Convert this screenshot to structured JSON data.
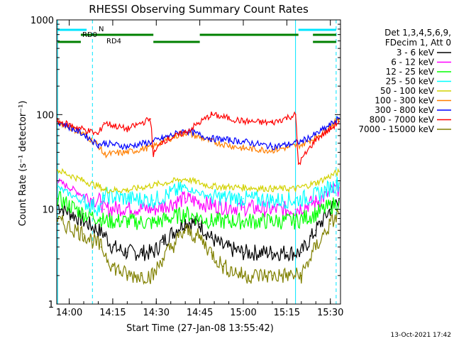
{
  "chart_data": {
    "type": "line",
    "title": "RHESSI Observing Summary Count Rates",
    "xlabel": "Start Time (27-Jan-08 13:55:42)",
    "ylabel": "Count Rate (s⁻¹ detector⁻¹)",
    "xlim": [
      "13:55:42",
      "15:33:30"
    ],
    "ylim": [
      1,
      1000
    ],
    "yscale": "log",
    "x_ticks": [
      "14:00",
      "14:15",
      "14:30",
      "14:45",
      "15:00",
      "15:15",
      "15:30"
    ],
    "y_ticks": [
      "1",
      "10",
      "100",
      "1000"
    ],
    "legend_header": [
      "Det 1,3,4,5,6,9,",
      "FDecim 1, Att 0"
    ],
    "legend_position": "right",
    "footer_date": "13-Oct-2021 17:42",
    "flags": [
      {
        "label": "N",
        "color": "#00e5ff",
        "segments": [
          [
            "13:56",
            "14:06"
          ],
          [
            "15:19",
            "15:32"
          ]
        ]
      },
      {
        "label": "RD0",
        "color": "#008000",
        "segments": [
          [
            "14:04",
            "14:29"
          ],
          [
            "14:45",
            "15:19"
          ],
          [
            "15:24",
            "15:32"
          ]
        ]
      },
      {
        "label": "RD4",
        "color": "#008000",
        "segments": [
          [
            "13:56",
            "14:04"
          ],
          [
            "14:29",
            "14:45"
          ],
          [
            "15:24",
            "15:32"
          ]
        ]
      }
    ],
    "vlines": [
      {
        "time": "13:56",
        "style": "solid"
      },
      {
        "time": "14:08",
        "style": "dashed"
      },
      {
        "time": "15:18",
        "style": "solid"
      },
      {
        "time": "15:32",
        "style": "dashed"
      }
    ],
    "series": [
      {
        "name": "3 - 6 keV",
        "color": "#000000",
        "x": [
          "13:56",
          "14:05",
          "14:12",
          "14:15",
          "14:20",
          "14:25",
          "14:29",
          "14:32",
          "14:40",
          "14:45",
          "14:49",
          "14:53",
          "15:00",
          "15:10",
          "15:15",
          "15:20",
          "15:25",
          "15:30",
          "15:33"
        ],
        "values": [
          11,
          7.5,
          5.5,
          4,
          3.5,
          3.5,
          3.5,
          4.5,
          7.5,
          7,
          5,
          4,
          3.5,
          3.5,
          3.5,
          3.5,
          6,
          10,
          13
        ]
      },
      {
        "name": "6 - 12 keV",
        "color": "#ff00ff",
        "x": [
          "13:56",
          "14:05",
          "14:11",
          "14:12",
          "14:20",
          "14:29",
          "14:40",
          "14:49",
          "15:00",
          "15:10",
          "15:18",
          "15:25",
          "15:33"
        ],
        "values": [
          20,
          14,
          12,
          10,
          10.5,
          10,
          13,
          11,
          10.5,
          10,
          10,
          12,
          17
        ]
      },
      {
        "name": "12 - 25 keV",
        "color": "#00ff00",
        "x": [
          "13:56",
          "14:05",
          "14:11",
          "14:12",
          "14:20",
          "14:29",
          "14:40",
          "14:49",
          "15:00",
          "15:10",
          "15:18",
          "15:25",
          "15:33"
        ],
        "values": [
          13,
          9,
          8,
          7.5,
          7.5,
          7.2,
          9,
          7.5,
          7.5,
          7.5,
          7.5,
          9,
          12
        ]
      },
      {
        "name": "25 - 50 keV",
        "color": "#00ffff",
        "x": [
          "13:56",
          "14:05",
          "14:11",
          "14:12",
          "14:20",
          "14:29",
          "14:40",
          "14:49",
          "15:00",
          "15:10",
          "15:18",
          "15:25",
          "15:33"
        ],
        "values": [
          17,
          12,
          10,
          14,
          13,
          12.5,
          17,
          13.5,
          13,
          12.5,
          12.5,
          14,
          19
        ]
      },
      {
        "name": "50 - 100 keV",
        "color": "#d2d200",
        "x": [
          "13:56",
          "14:05",
          "14:11",
          "14:12",
          "14:20",
          "14:29",
          "14:40",
          "14:49",
          "15:00",
          "15:10",
          "15:18",
          "15:25",
          "15:33"
        ],
        "values": [
          26,
          20,
          17,
          16,
          16,
          18,
          21,
          17.5,
          17,
          16.5,
          16.5,
          19,
          25
        ]
      },
      {
        "name": "100 - 300 keV",
        "color": "#ff7f00",
        "x": [
          "13:56",
          "14:05",
          "14:10",
          "14:12",
          "14:20",
          "14:29",
          "14:32",
          "14:40",
          "14:49",
          "15:00",
          "15:10",
          "15:15",
          "15:20",
          "15:25",
          "15:30",
          "15:33"
        ],
        "values": [
          85,
          62,
          48,
          38,
          40,
          46,
          52,
          65,
          52,
          44,
          42,
          45,
          48,
          58,
          75,
          90
        ]
      },
      {
        "name": "300 - 800 keV",
        "color": "#0000ff",
        "x": [
          "13:56",
          "14:05",
          "14:10",
          "14:12",
          "14:20",
          "14:29",
          "14:32",
          "14:40",
          "14:49",
          "15:00",
          "15:10",
          "15:15",
          "15:20",
          "15:25",
          "15:30",
          "15:33"
        ],
        "values": [
          85,
          62,
          48,
          50,
          46,
          52,
          56,
          68,
          56,
          52,
          46,
          48,
          52,
          62,
          78,
          92
        ]
      },
      {
        "name": "800 - 7000 keV",
        "color": "#ff0000",
        "x": [
          "13:56",
          "14:05",
          "14:10",
          "14:12",
          "14:20",
          "14:28",
          "14:29",
          "14:32",
          "14:40",
          "14:49",
          "15:00",
          "15:10",
          "15:18",
          "15:19",
          "15:25",
          "15:30",
          "15:33"
        ],
        "values": [
          85,
          70,
          62,
          82,
          70,
          90,
          38,
          52,
          65,
          100,
          85,
          82,
          100,
          30,
          55,
          70,
          85
        ]
      },
      {
        "name": "7000 - 15000 keV",
        "color": "#808000",
        "x": [
          "13:56",
          "14:05",
          "14:11",
          "14:15",
          "14:20",
          "14:25",
          "14:29",
          "14:32",
          "14:40",
          "14:45",
          "14:49",
          "14:53",
          "15:00",
          "15:10",
          "15:15",
          "15:20",
          "15:25",
          "15:30",
          "15:33"
        ],
        "values": [
          7.5,
          5.5,
          4,
          2.5,
          2,
          2,
          2,
          3,
          6,
          5,
          3.5,
          2.5,
          2,
          2,
          2,
          2,
          4,
          7,
          9
        ]
      }
    ]
  }
}
